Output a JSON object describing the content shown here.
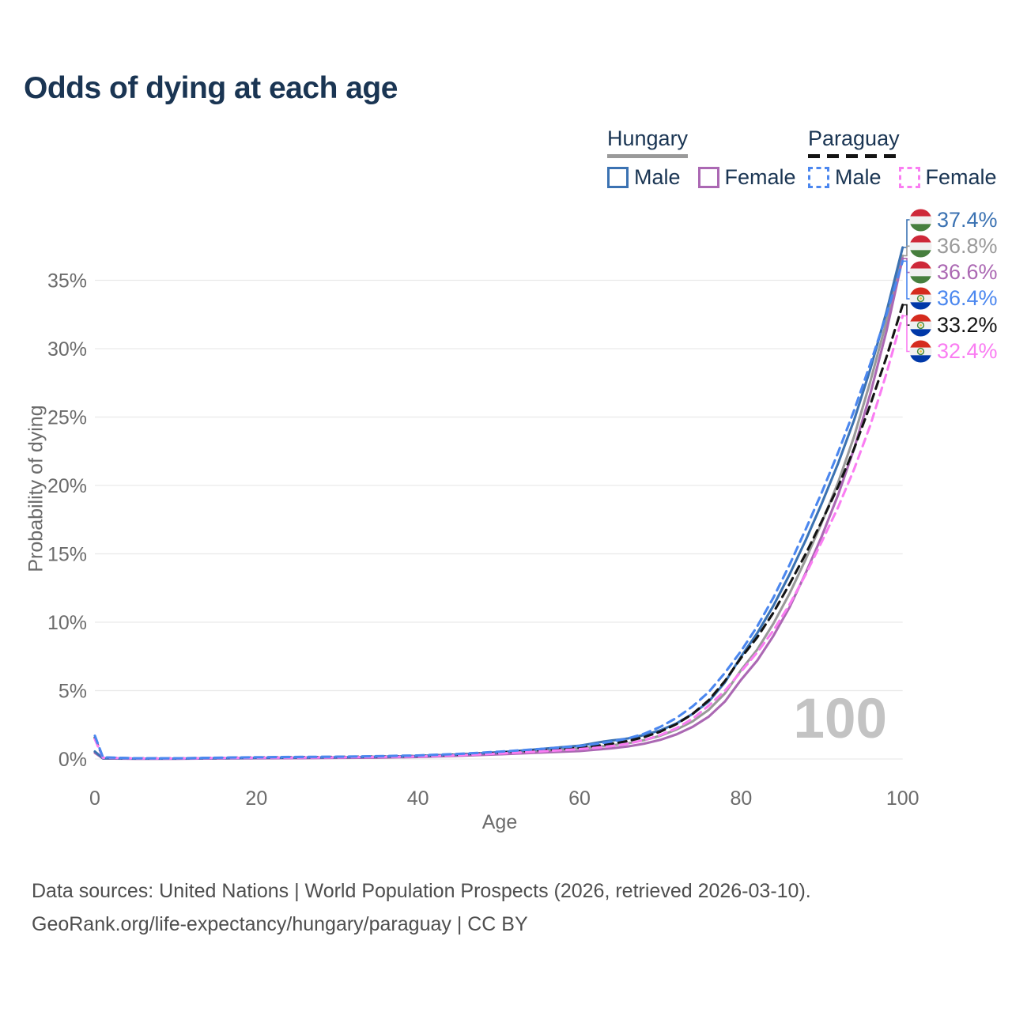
{
  "page": {
    "title": "Odds of dying at each age"
  },
  "legend": {
    "groups": [
      {
        "title": "Hungary",
        "line_style": "solid",
        "line_color": "#9a9a9a",
        "items": [
          {
            "label": "Male",
            "swatch_style": "solid",
            "swatch_color": "#3b72b2"
          },
          {
            "label": "Female",
            "swatch_style": "solid",
            "swatch_color": "#ab68b3"
          }
        ]
      },
      {
        "title": "Paraguay",
        "line_style": "dashed",
        "line_color": "#141414",
        "items": [
          {
            "label": "Male",
            "swatch_style": "dashed",
            "swatch_color": "#4b87ef"
          },
          {
            "label": "Female",
            "swatch_style": "dashed",
            "swatch_color": "#fa7df2"
          }
        ]
      }
    ]
  },
  "chart_data": {
    "type": "line",
    "title": "Odds of dying at each age",
    "xlabel": "Age",
    "ylabel": "Probability of dying",
    "xlim": [
      0,
      100
    ],
    "ylim": [
      0,
      37.5
    ],
    "x_ticks": [
      0,
      20,
      40,
      60,
      80,
      100
    ],
    "y_ticks": [
      "0%",
      "5%",
      "10%",
      "15%",
      "20%",
      "25%",
      "30%",
      "35%"
    ],
    "grid": "horizontal",
    "watermark": "100",
    "flags": {
      "hungary": [
        "#ce2939",
        "#f0f0f0",
        "#477f3e"
      ],
      "paraguay": [
        "#d52b1e",
        "#f0f0f0",
        "#0038a8"
      ]
    },
    "series": [
      {
        "id": "hungary-all",
        "name": "Hungary (both sexes)",
        "country": "Hungary",
        "style": "solid",
        "color": "#9a9a9a",
        "points": [
          [
            0,
            0.5
          ],
          [
            1,
            0.045
          ],
          [
            5,
            0.025
          ],
          [
            10,
            0.025
          ],
          [
            15,
            0.045
          ],
          [
            20,
            0.07
          ],
          [
            25,
            0.085
          ],
          [
            30,
            0.1
          ],
          [
            35,
            0.13
          ],
          [
            40,
            0.18
          ],
          [
            45,
            0.28
          ],
          [
            50,
            0.42
          ],
          [
            55,
            0.6
          ],
          [
            60,
            0.78
          ],
          [
            62,
            0.88
          ],
          [
            64,
            1.0
          ],
          [
            66,
            1.15
          ],
          [
            68,
            1.38
          ],
          [
            70,
            1.7
          ],
          [
            72,
            2.15
          ],
          [
            74,
            2.75
          ],
          [
            76,
            3.6
          ],
          [
            78,
            4.8
          ],
          [
            80,
            6.5
          ],
          [
            82,
            8.0
          ],
          [
            84,
            9.9
          ],
          [
            86,
            12.1
          ],
          [
            88,
            14.6
          ],
          [
            90,
            17.3
          ],
          [
            92,
            20.2
          ],
          [
            94,
            23.6
          ],
          [
            96,
            27.6
          ],
          [
            98,
            32.0
          ],
          [
            100,
            36.8
          ]
        ]
      },
      {
        "id": "hungary-female",
        "name": "Hungary Female",
        "country": "Hungary",
        "style": "solid",
        "color": "#ab68b3",
        "points": [
          [
            0,
            0.45
          ],
          [
            1,
            0.04
          ],
          [
            5,
            0.02
          ],
          [
            10,
            0.02
          ],
          [
            15,
            0.04
          ],
          [
            20,
            0.05
          ],
          [
            25,
            0.06
          ],
          [
            30,
            0.08
          ],
          [
            35,
            0.1
          ],
          [
            40,
            0.15
          ],
          [
            45,
            0.23
          ],
          [
            50,
            0.34
          ],
          [
            55,
            0.46
          ],
          [
            60,
            0.58
          ],
          [
            62,
            0.68
          ],
          [
            64,
            0.78
          ],
          [
            66,
            0.92
          ],
          [
            68,
            1.12
          ],
          [
            70,
            1.4
          ],
          [
            72,
            1.8
          ],
          [
            74,
            2.35
          ],
          [
            76,
            3.1
          ],
          [
            78,
            4.2
          ],
          [
            80,
            5.8
          ],
          [
            82,
            7.2
          ],
          [
            84,
            9.0
          ],
          [
            86,
            11.1
          ],
          [
            88,
            13.6
          ],
          [
            90,
            16.3
          ],
          [
            92,
            19.3
          ],
          [
            94,
            22.7
          ],
          [
            96,
            26.7
          ],
          [
            98,
            31.3
          ],
          [
            100,
            36.6
          ]
        ]
      },
      {
        "id": "hungary-male",
        "name": "Hungary Male",
        "country": "Hungary",
        "style": "solid",
        "color": "#3b72b2",
        "points": [
          [
            0,
            0.55
          ],
          [
            1,
            0.05
          ],
          [
            5,
            0.03
          ],
          [
            10,
            0.03
          ],
          [
            15,
            0.05
          ],
          [
            20,
            0.08
          ],
          [
            25,
            0.1
          ],
          [
            30,
            0.12
          ],
          [
            35,
            0.16
          ],
          [
            40,
            0.22
          ],
          [
            45,
            0.33
          ],
          [
            50,
            0.5
          ],
          [
            52,
            0.58
          ],
          [
            54,
            0.67
          ],
          [
            56,
            0.77
          ],
          [
            58,
            0.87
          ],
          [
            60,
            0.97
          ],
          [
            61,
            1.07
          ],
          [
            62,
            1.18
          ],
          [
            63,
            1.28
          ],
          [
            64,
            1.35
          ],
          [
            65,
            1.42
          ],
          [
            66,
            1.5
          ],
          [
            68,
            1.75
          ],
          [
            70,
            2.1
          ],
          [
            72,
            2.6
          ],
          [
            74,
            3.3
          ],
          [
            76,
            4.2
          ],
          [
            78,
            5.6
          ],
          [
            80,
            7.5
          ],
          [
            82,
            9.2
          ],
          [
            84,
            11.2
          ],
          [
            86,
            13.5
          ],
          [
            88,
            16.0
          ],
          [
            90,
            18.7
          ],
          [
            92,
            21.6
          ],
          [
            94,
            24.8
          ],
          [
            96,
            28.5
          ],
          [
            98,
            32.7
          ],
          [
            100,
            37.4
          ]
        ]
      },
      {
        "id": "paraguay-all",
        "name": "Paraguay (both sexes)",
        "country": "Paraguay",
        "style": "dashed",
        "color": "#141414",
        "points": [
          [
            0,
            1.55
          ],
          [
            1,
            0.1
          ],
          [
            5,
            0.045
          ],
          [
            10,
            0.045
          ],
          [
            15,
            0.08
          ],
          [
            20,
            0.11
          ],
          [
            25,
            0.13
          ],
          [
            30,
            0.15
          ],
          [
            35,
            0.18
          ],
          [
            40,
            0.22
          ],
          [
            45,
            0.32
          ],
          [
            50,
            0.46
          ],
          [
            55,
            0.63
          ],
          [
            60,
            0.82
          ],
          [
            62,
            0.95
          ],
          [
            64,
            1.12
          ],
          [
            66,
            1.32
          ],
          [
            68,
            1.6
          ],
          [
            70,
            2.0
          ],
          [
            72,
            2.55
          ],
          [
            74,
            3.3
          ],
          [
            76,
            4.3
          ],
          [
            78,
            5.7
          ],
          [
            80,
            7.4
          ],
          [
            82,
            8.9
          ],
          [
            84,
            10.7
          ],
          [
            86,
            12.8
          ],
          [
            88,
            15.0
          ],
          [
            90,
            17.4
          ],
          [
            92,
            19.9
          ],
          [
            94,
            22.7
          ],
          [
            96,
            25.9
          ],
          [
            98,
            29.4
          ],
          [
            100,
            33.2
          ]
        ]
      },
      {
        "id": "paraguay-female",
        "name": "Paraguay Female",
        "country": "Paraguay",
        "style": "dashed",
        "color": "#fa7df2",
        "points": [
          [
            0,
            1.45
          ],
          [
            1,
            0.09
          ],
          [
            5,
            0.04
          ],
          [
            10,
            0.04
          ],
          [
            15,
            0.07
          ],
          [
            20,
            0.09
          ],
          [
            25,
            0.1
          ],
          [
            30,
            0.12
          ],
          [
            35,
            0.15
          ],
          [
            40,
            0.19
          ],
          [
            45,
            0.28
          ],
          [
            50,
            0.4
          ],
          [
            55,
            0.55
          ],
          [
            60,
            0.72
          ],
          [
            62,
            0.82
          ],
          [
            64,
            0.95
          ],
          [
            66,
            1.12
          ],
          [
            68,
            1.38
          ],
          [
            70,
            1.75
          ],
          [
            72,
            2.25
          ],
          [
            74,
            2.95
          ],
          [
            76,
            3.9
          ],
          [
            78,
            5.0
          ],
          [
            80,
            6.4
          ],
          [
            82,
            7.8
          ],
          [
            84,
            9.4
          ],
          [
            86,
            11.3
          ],
          [
            88,
            13.5
          ],
          [
            90,
            15.9
          ],
          [
            92,
            18.4
          ],
          [
            94,
            21.2
          ],
          [
            96,
            24.4
          ],
          [
            98,
            28.2
          ],
          [
            100,
            32.4
          ]
        ]
      },
      {
        "id": "paraguay-male",
        "name": "Paraguay Male",
        "country": "Paraguay",
        "style": "dashed",
        "color": "#4b87ef",
        "points": [
          [
            0,
            1.7
          ],
          [
            1,
            0.12
          ],
          [
            5,
            0.05
          ],
          [
            10,
            0.05
          ],
          [
            15,
            0.09
          ],
          [
            20,
            0.13
          ],
          [
            25,
            0.15
          ],
          [
            30,
            0.17
          ],
          [
            35,
            0.21
          ],
          [
            40,
            0.26
          ],
          [
            45,
            0.37
          ],
          [
            50,
            0.53
          ],
          [
            55,
            0.73
          ],
          [
            60,
            0.95
          ],
          [
            62,
            1.1
          ],
          [
            64,
            1.28
          ],
          [
            66,
            1.5
          ],
          [
            68,
            1.85
          ],
          [
            70,
            2.35
          ],
          [
            72,
            3.0
          ],
          [
            74,
            3.85
          ],
          [
            76,
            4.9
          ],
          [
            78,
            6.3
          ],
          [
            80,
            7.9
          ],
          [
            82,
            9.7
          ],
          [
            84,
            11.8
          ],
          [
            86,
            14.2
          ],
          [
            88,
            16.8
          ],
          [
            90,
            19.5
          ],
          [
            92,
            22.4
          ],
          [
            94,
            25.5
          ],
          [
            96,
            28.9
          ],
          [
            98,
            32.5
          ],
          [
            100,
            36.4
          ]
        ]
      }
    ],
    "end_labels": [
      {
        "series": "hungary-male",
        "flag": "hungary",
        "value": "37.4%",
        "color": "#3b72b2"
      },
      {
        "series": "hungary-all",
        "flag": "hungary",
        "value": "36.8%",
        "color": "#9a9a9a"
      },
      {
        "series": "hungary-female",
        "flag": "hungary",
        "value": "36.6%",
        "color": "#ab68b3"
      },
      {
        "series": "paraguay-male",
        "flag": "paraguay",
        "value": "36.4%",
        "color": "#4b87ef"
      },
      {
        "series": "paraguay-all",
        "flag": "paraguay",
        "value": "33.2%",
        "color": "#141414"
      },
      {
        "series": "paraguay-female",
        "flag": "paraguay",
        "value": "32.4%",
        "color": "#fa7df2"
      }
    ]
  },
  "footer": {
    "line1": "Data sources: United Nations | World Population Prospects (2026, retrieved 2026-03-10).",
    "line2": "GeoRank.org/life-expectancy/hungary/paraguay | CC BY"
  }
}
